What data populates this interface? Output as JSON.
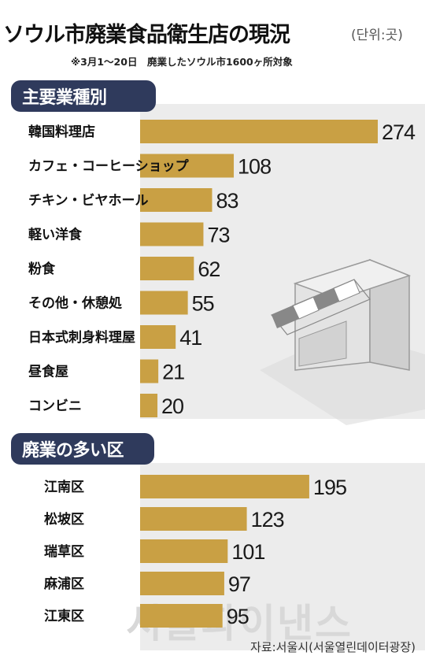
{
  "title": "ソウル市廃業食品衛生店の現況",
  "unit": "(단위:곳)",
  "subtitle": "※3月1～20日　廃業したソウル市1600ヶ所対象",
  "source": "자료:서울시(서울열린데이터광장)",
  "watermark": "서울파이낸스",
  "colors": {
    "bar": "#c9a044",
    "section_header": "#2f3a5c",
    "panel": "#ececec"
  },
  "illustration": "store-icon",
  "chart_data": [
    {
      "type": "bar",
      "orientation": "horizontal",
      "title": "主要業種別",
      "categories": [
        "韓国料理店",
        "カフェ・コーヒーショップ",
        "チキン・ビヤホール",
        "軽い洋食",
        "粉食",
        "その他・休憩処",
        "日本式刺身料理屋",
        "昼食屋",
        "コンビニ"
      ],
      "values": [
        274,
        108,
        83,
        73,
        62,
        55,
        41,
        21,
        20
      ]
    },
    {
      "type": "bar",
      "orientation": "horizontal",
      "title": "廃業の多い区",
      "categories": [
        "江南区",
        "松坡区",
        "瑞草区",
        "麻浦区",
        "江東区"
      ],
      "values": [
        195,
        123,
        101,
        97,
        95
      ]
    }
  ]
}
